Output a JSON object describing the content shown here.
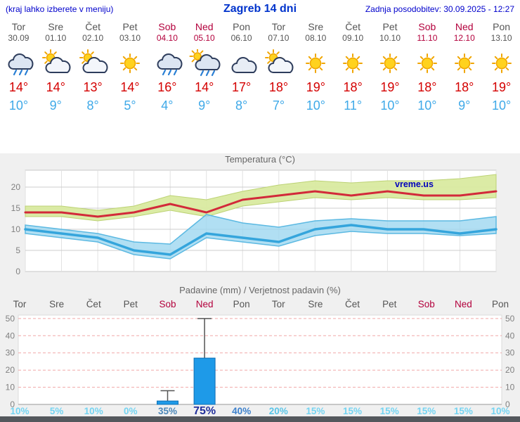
{
  "header": {
    "note": "(kraj lahko izberete v meniju)",
    "title": "Zagreb 14 dni",
    "updated": "Zadnja posodobitev: 30.09.2025 - 12:27"
  },
  "watermark": "vreme.us",
  "days": [
    {
      "name": "Tor",
      "date": "30.09",
      "weekend": false,
      "icon": "rain",
      "tmax": "14°",
      "tmin": "10°"
    },
    {
      "name": "Sre",
      "date": "01.10",
      "weekend": false,
      "icon": "partly",
      "tmax": "14°",
      "tmin": "9°"
    },
    {
      "name": "Čet",
      "date": "02.10",
      "weekend": false,
      "icon": "partly",
      "tmax": "13°",
      "tmin": "8°"
    },
    {
      "name": "Pet",
      "date": "03.10",
      "weekend": false,
      "icon": "sunny",
      "tmax": "14°",
      "tmin": "5°"
    },
    {
      "name": "Sob",
      "date": "04.10",
      "weekend": true,
      "icon": "rain",
      "tmax": "16°",
      "tmin": "4°"
    },
    {
      "name": "Ned",
      "date": "05.10",
      "weekend": true,
      "icon": "rain-sun",
      "tmax": "14°",
      "tmin": "9°"
    },
    {
      "name": "Pon",
      "date": "06.10",
      "weekend": false,
      "icon": "cloudy",
      "tmax": "17°",
      "tmin": "8°"
    },
    {
      "name": "Tor",
      "date": "07.10",
      "weekend": false,
      "icon": "partly",
      "tmax": "18°",
      "tmin": "7°"
    },
    {
      "name": "Sre",
      "date": "08.10",
      "weekend": false,
      "icon": "sunny",
      "tmax": "19°",
      "tmin": "10°"
    },
    {
      "name": "Čet",
      "date": "09.10",
      "weekend": false,
      "icon": "sunny",
      "tmax": "18°",
      "tmin": "11°"
    },
    {
      "name": "Pet",
      "date": "10.10",
      "weekend": false,
      "icon": "sunny",
      "tmax": "19°",
      "tmin": "10°"
    },
    {
      "name": "Sob",
      "date": "11.10",
      "weekend": true,
      "icon": "sunny",
      "tmax": "18°",
      "tmin": "10°"
    },
    {
      "name": "Ned",
      "date": "12.10",
      "weekend": true,
      "icon": "sunny",
      "tmax": "18°",
      "tmin": "9°"
    },
    {
      "name": "Pon",
      "date": "13.10",
      "weekend": false,
      "icon": "sunny",
      "tmax": "19°",
      "tmin": "10°"
    }
  ],
  "colors": {
    "header_blue": "#0000cc",
    "title_blue": "#0033cc",
    "weekday_gray": "#555555",
    "weekend_red": "#b3003c",
    "tmax_red": "#d40000",
    "tmin_blue": "#3fa9e8",
    "bar_blue": "#1e9ae8",
    "chart_bg": "#f0f0f0",
    "grid_pink": "#f0a8a8",
    "watermark_blue": "#0000bb"
  },
  "chart_data": [
    {
      "type": "line",
      "title": "Temperatura (°C)",
      "x_labels": [
        "30.09",
        "01.10",
        "02.10",
        "03.10",
        "04.10",
        "05.10",
        "06.10",
        "07.10",
        "08.10",
        "09.10",
        "10.10",
        "11.10",
        "12.10",
        "13.10"
      ],
      "ylim": [
        0,
        24
      ],
      "yticks": [
        0,
        5,
        10,
        15,
        20
      ],
      "grid": true,
      "series": [
        {
          "name": "tmax",
          "color": "#d22a3a",
          "values": [
            14,
            14,
            13,
            14,
            16,
            14,
            17,
            18,
            19,
            18,
            19,
            18,
            18,
            19
          ]
        },
        {
          "name": "tmax_range_upper",
          "color": "#d9eaa0",
          "values": [
            15.5,
            15.5,
            14.5,
            15.5,
            18,
            17,
            19,
            20.5,
            21.5,
            21,
            21.5,
            21.5,
            22,
            23
          ]
        },
        {
          "name": "tmax_range_lower",
          "color": "#d9eaa0",
          "values": [
            13,
            13,
            12,
            13,
            14.5,
            13,
            15.5,
            16.5,
            17.5,
            17,
            17.5,
            17,
            17,
            17.5
          ]
        },
        {
          "name": "tmin",
          "color": "#35a5dc",
          "values": [
            10,
            9,
            8,
            5,
            4,
            9,
            8,
            7,
            10,
            11,
            10,
            10,
            9,
            10
          ]
        },
        {
          "name": "tmin_range_upper",
          "color": "#9ed7f0",
          "values": [
            11,
            10,
            9,
            7,
            6.5,
            13.5,
            11.5,
            10.5,
            12,
            12.5,
            12,
            12,
            12,
            13
          ]
        },
        {
          "name": "tmin_range_lower",
          "color": "#9ed7f0",
          "values": [
            9,
            8,
            7,
            4,
            3,
            8,
            7,
            6,
            8.5,
            9.5,
            9,
            9,
            8.5,
            9
          ]
        }
      ]
    },
    {
      "type": "bar",
      "title": "Padavine (mm) / Verjetnost padavin (%)",
      "categories": [
        "Tor",
        "Sre",
        "Čet",
        "Pet",
        "Sob",
        "Ned",
        "Pon",
        "Tor",
        "Sre",
        "Čet",
        "Pet",
        "Sob",
        "Ned",
        "Pon"
      ],
      "values_mm": [
        0,
        0,
        0,
        0,
        2,
        27,
        0,
        0,
        0,
        0,
        0,
        0,
        0,
        0
      ],
      "whisker_mm": [
        0,
        0,
        0,
        0,
        8,
        50,
        0,
        0,
        0,
        0,
        0,
        0,
        0,
        0
      ],
      "ylim": [
        0,
        52
      ],
      "yticks": [
        0,
        10,
        20,
        30,
        40,
        50
      ],
      "probabilities": [
        {
          "text": "10%",
          "color": "#74d4f2"
        },
        {
          "text": "5%",
          "color": "#74d4f2"
        },
        {
          "text": "10%",
          "color": "#74d4f2"
        },
        {
          "text": "0%",
          "color": "#74d4f2"
        },
        {
          "text": "35%",
          "color": "#4a86b8"
        },
        {
          "text": "75%",
          "color": "#202f9c",
          "size": 16
        },
        {
          "text": "40%",
          "color": "#3c80cc"
        },
        {
          "text": "20%",
          "color": "#58c4e8"
        },
        {
          "text": "15%",
          "color": "#74d4f2"
        },
        {
          "text": "15%",
          "color": "#74d4f2"
        },
        {
          "text": "15%",
          "color": "#74d4f2"
        },
        {
          "text": "15%",
          "color": "#74d4f2"
        },
        {
          "text": "15%",
          "color": "#74d4f2"
        },
        {
          "text": "10%",
          "color": "#74d4f2"
        }
      ]
    }
  ]
}
